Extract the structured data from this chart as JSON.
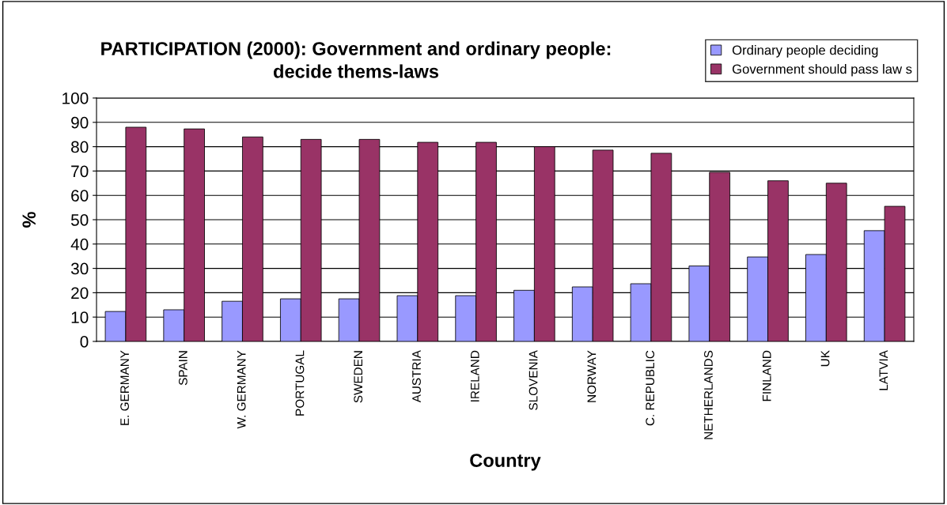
{
  "chart_data": {
    "type": "bar",
    "title": "PARTICIPATION (2000): Government and ordinary people:\ndecide thems-laws",
    "xlabel": "Country",
    "ylabel": "%",
    "categories": [
      "E. GERMANY",
      "SPAIN",
      "W. GERMANY",
      "PORTUGAL",
      "SWEDEN",
      "AUSTRIA",
      "IRELAND",
      "SLOVENIA",
      "NORWAY",
      "C. REPUBLIC",
      "NETHERLANDS",
      "FINLAND",
      "UK",
      "LATVIA"
    ],
    "series": [
      {
        "name": "Ordinary people deciding",
        "color": "#9999ff",
        "values": [
          12.3,
          13,
          16.5,
          17.5,
          17.5,
          18.8,
          18.8,
          21,
          22.4,
          23.7,
          31,
          34.7,
          35.7,
          45.5
        ]
      },
      {
        "name": "Government should pass law s",
        "color": "#993366",
        "values": [
          88,
          87.3,
          84,
          83,
          83,
          81.8,
          81.8,
          80,
          78.6,
          77.3,
          69.5,
          66,
          65,
          55.5
        ]
      }
    ],
    "ylim": [
      0,
      100
    ],
    "yticks": [
      0,
      10,
      20,
      30,
      40,
      50,
      60,
      70,
      80,
      90,
      100
    ],
    "grid": "y",
    "legend": "top right"
  }
}
